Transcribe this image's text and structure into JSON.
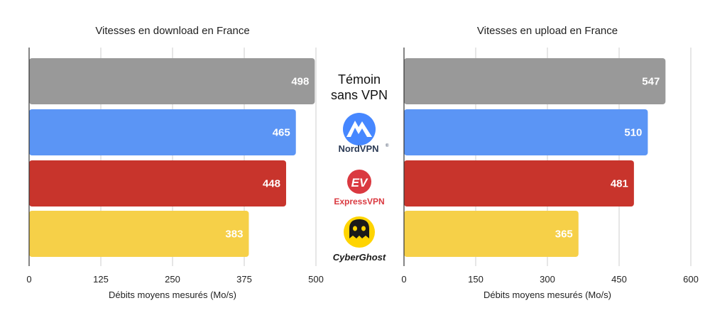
{
  "chart_data": [
    {
      "type": "bar",
      "orientation": "horizontal",
      "title": "Vitesses en download en France",
      "xlabel": "Débits moyens mesurés (Mo/s)",
      "ylabel": "",
      "categories": [
        "Témoin sans VPN",
        "NordVPN",
        "ExpressVPN",
        "CyberGhost"
      ],
      "values": [
        498,
        465,
        448,
        383
      ],
      "colors": [
        "#999999",
        "#5b95f5",
        "#c8342c",
        "#f6d048"
      ],
      "xlim": [
        0,
        500
      ],
      "ticks": [
        "0",
        "125",
        "250",
        "375",
        "500"
      ],
      "grid": true,
      "data_labels": true
    },
    {
      "type": "bar",
      "orientation": "horizontal",
      "title": "Vitesses en upload en France",
      "xlabel": "Débits moyens mesurés (Mo/s)",
      "ylabel": "",
      "categories": [
        "Témoin sans VPN",
        "NordVPN",
        "ExpressVPN",
        "CyberGhost"
      ],
      "values": [
        547,
        510,
        481,
        365
      ],
      "colors": [
        "#999999",
        "#5b95f5",
        "#c8342c",
        "#f6d048"
      ],
      "xlim": [
        0,
        600
      ],
      "ticks": [
        "0",
        "150",
        "300",
        "450",
        "600"
      ],
      "grid": true,
      "data_labels": true
    }
  ],
  "providers": {
    "control_line1": "Témoin",
    "control_line2": "sans VPN",
    "nordvpn": "NordVPN",
    "nordvpn_mark": "®",
    "expressvpn": "ExpressVPN",
    "expressvpn_mark": "EV",
    "cyberghost": "CyberGhost"
  },
  "colors": {
    "grid": "#cccccc",
    "axis": "#333333",
    "nord_blue": "#4687ff",
    "express_red": "#da3940",
    "cyber_yellow": "#ffd400"
  },
  "icons": [
    "nordvpn-logo-icon",
    "expressvpn-logo-icon",
    "cyberghost-logo-icon"
  ]
}
